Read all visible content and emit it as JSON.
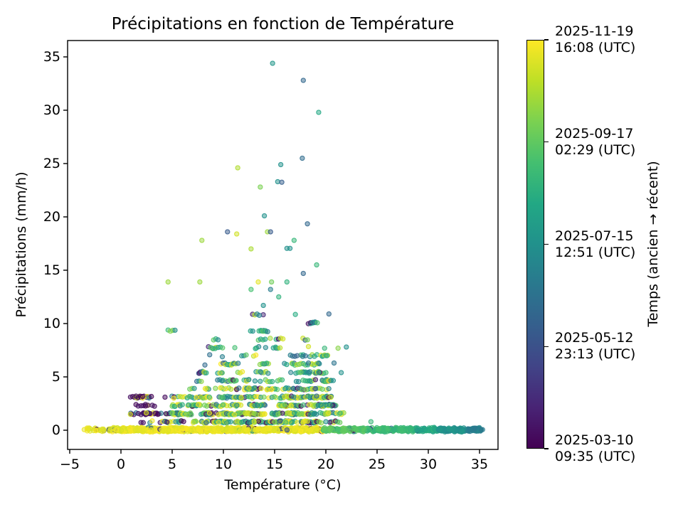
{
  "figure": {
    "background": "#ffffff",
    "spine_color": "#000000"
  },
  "chart_data": {
    "type": "scatter",
    "title": "Précipitations en fonction de Température",
    "xlabel": "Température (°C)",
    "ylabel": "Précipitations (mm/h)",
    "xlim": [
      -5.2,
      36.8
    ],
    "ylim": [
      -1.8,
      36.5
    ],
    "grid": false,
    "xticks": {
      "values": [
        -5,
        0,
        5,
        10,
        15,
        20,
        25,
        30,
        35
      ],
      "labels": [
        "−5",
        "0",
        "5",
        "10",
        "15",
        "20",
        "25",
        "30",
        "35"
      ]
    },
    "yticks": {
      "values": [
        0,
        5,
        10,
        15,
        20,
        25,
        30,
        35
      ],
      "labels": [
        "0",
        "5",
        "10",
        "15",
        "20",
        "25",
        "30",
        "35"
      ]
    },
    "colormap": "viridis",
    "viridis_stops": [
      "#440154",
      "#482475",
      "#414487",
      "#355f8d",
      "#2a788e",
      "#21918c",
      "#22a884",
      "#44bf70",
      "#7ad151",
      "#bddf26",
      "#fde725"
    ],
    "colorbar": {
      "label": "Temps (ancien → récent)",
      "ticks": [
        {
          "pos": 0.0,
          "label": "2025-03-10\n09:35 (UTC)"
        },
        {
          "pos": 0.25,
          "label": "2025-05-12\n23:13 (UTC)"
        },
        {
          "pos": 0.5,
          "label": "2025-07-15\n12:51 (UTC)"
        },
        {
          "pos": 0.75,
          "label": "2025-09-17\n02:29 (UTC)"
        },
        {
          "pos": 1.0,
          "label": "2025-11-19\n16:08 (UTC)"
        }
      ]
    },
    "points": [
      [
        14.8,
        34.4,
        0.52
      ],
      [
        17.8,
        32.8,
        0.33
      ],
      [
        19.3,
        29.8,
        0.6
      ],
      [
        15.6,
        24.9,
        0.5
      ],
      [
        17.7,
        25.5,
        0.35
      ],
      [
        11.4,
        24.6,
        0.88
      ],
      [
        15.3,
        23.3,
        0.5
      ],
      [
        15.7,
        23.25,
        0.3
      ],
      [
        13.6,
        22.8,
        0.8
      ],
      [
        14.0,
        20.1,
        0.5
      ],
      [
        18.2,
        19.35,
        0.33
      ],
      [
        11.3,
        18.4,
        0.93
      ],
      [
        10.4,
        18.6,
        0.28
      ],
      [
        14.3,
        18.6,
        0.85
      ],
      [
        14.6,
        18.6,
        0.28
      ],
      [
        7.9,
        17.8,
        0.85
      ],
      [
        16.9,
        17.8,
        0.66
      ],
      [
        12.7,
        17.0,
        0.87
      ],
      [
        16.2,
        17.05,
        0.5
      ],
      [
        16.5,
        17.05,
        0.5
      ],
      [
        19.1,
        15.5,
        0.66
      ],
      [
        17.8,
        14.7,
        0.33
      ],
      [
        4.6,
        13.9,
        0.85
      ],
      [
        7.7,
        13.9,
        0.85
      ],
      [
        13.4,
        13.9,
        0.96
      ],
      [
        14.7,
        13.9,
        0.78
      ],
      [
        16.2,
        13.9,
        0.64
      ],
      [
        12.7,
        13.2,
        0.7
      ],
      [
        14.6,
        13.2,
        0.42
      ],
      [
        15.4,
        12.5,
        0.64
      ],
      [
        13.9,
        11.7,
        0.5
      ],
      [
        20.3,
        10.9,
        0.33
      ],
      [
        22.0,
        7.8,
        0.5
      ],
      [
        18.3,
        6.3,
        0.38
      ],
      [
        19.3,
        6.3,
        0.45
      ],
      [
        20.8,
        6.3,
        0.38
      ],
      [
        21.5,
        5.4,
        0.5
      ],
      [
        19.0,
        3.9,
        0.33
      ],
      [
        18.3,
        3.2,
        0.66
      ],
      [
        19.1,
        3.2,
        0.35
      ],
      [
        19.5,
        2.4,
        0.5
      ],
      [
        20.0,
        2.4,
        0.5
      ],
      [
        20.4,
        2.4,
        0.5
      ],
      [
        21.4,
        1.6,
        0.66
      ],
      [
        24.4,
        0.8,
        0.66
      ],
      [
        20.0,
        0.8,
        0.5
      ],
      [
        4.3,
        3.1,
        0.03
      ],
      [
        4.4,
        1.55,
        0.03
      ]
    ],
    "palettes": {
      "mixLow": [
        [
          0.34,
          0.88,
          1.0
        ],
        [
          0.2,
          0.72,
          0.85
        ],
        [
          0.16,
          0.55,
          0.72
        ],
        [
          0.12,
          0.0,
          0.07
        ],
        [
          0.1,
          0.3,
          0.48
        ],
        [
          0.08,
          0.45,
          0.55
        ]
      ],
      "mixMid": [
        [
          0.26,
          0.6,
          0.75
        ],
        [
          0.22,
          0.78,
          0.95
        ],
        [
          0.2,
          0.45,
          0.6
        ],
        [
          0.18,
          0.3,
          0.45
        ],
        [
          0.08,
          0.02,
          0.12
        ],
        [
          0.06,
          0.88,
          1.0
        ]
      ],
      "purpleCluster": [
        [
          0.72,
          0.0,
          0.06
        ],
        [
          0.18,
          0.9,
          1.0
        ],
        [
          0.1,
          0.3,
          0.45
        ]
      ]
    },
    "bands": [
      {
        "y": 0.78,
        "x": [
          4.3,
          21.0
        ],
        "n": 150,
        "palette": "mixLow"
      },
      {
        "y": 0.78,
        "x": [
          1.2,
          4.2
        ],
        "n": 8,
        "palette": "purpleCluster"
      },
      {
        "y": 1.55,
        "x": [
          4.0,
          21.6
        ],
        "n": 200,
        "palette": "mixLow"
      },
      {
        "y": 1.55,
        "x": [
          0.7,
          3.3
        ],
        "n": 30,
        "palette": "purpleCluster"
      },
      {
        "y": 2.33,
        "x": [
          4.3,
          20.6
        ],
        "n": 130,
        "palette": "mixLow"
      },
      {
        "y": 2.33,
        "x": [
          1.0,
          3.2
        ],
        "n": 10,
        "palette": "purpleCluster"
      },
      {
        "y": 3.1,
        "x": [
          4.3,
          20.6
        ],
        "n": 110,
        "palette": "mixLow"
      },
      {
        "y": 3.1,
        "x": [
          0.4,
          2.6
        ],
        "n": 20,
        "palette": "purpleCluster"
      },
      {
        "y": 3.88,
        "x": [
          6.5,
          20.6
        ],
        "n": 70,
        "palette": "mixLow"
      },
      {
        "y": 4.65,
        "x": [
          7.0,
          21.0
        ],
        "n": 54,
        "palette": "mixMid"
      },
      {
        "y": 5.43,
        "x": [
          7.5,
          21.6
        ],
        "n": 46,
        "palette": "mixMid"
      },
      {
        "y": 6.2,
        "x": [
          7.5,
          21.0
        ],
        "n": 40,
        "palette": "mixMid"
      },
      {
        "y": 6.98,
        "x": [
          8.0,
          21.0
        ],
        "n": 26,
        "palette": "mixMid"
      },
      {
        "y": 7.75,
        "x": [
          8.5,
          22.1
        ],
        "n": 22,
        "palette": "mixMid"
      },
      {
        "y": 8.53,
        "x": [
          9.0,
          20.0
        ],
        "n": 15,
        "palette": "mixMid"
      },
      {
        "y": 9.3,
        "x": [
          4.2,
          20.0
        ],
        "n": 14,
        "palette": "mixMid"
      },
      {
        "y": 10.08,
        "x": [
          10.0,
          19.5
        ],
        "n": 8,
        "palette": "mixMid"
      },
      {
        "y": 10.85,
        "x": [
          11.0,
          20.3
        ],
        "n": 6,
        "palette": "mixMid"
      }
    ],
    "zero_band": {
      "y_center": 0.0,
      "y_jitter": [
        -0.18,
        0.28
      ],
      "segments": [
        {
          "x": [
            -3.7,
            -1.2
          ],
          "n": 25
        },
        {
          "x": [
            -1.2,
            19.7
          ],
          "n": 1050
        },
        {
          "x": [
            19.7,
            31.0
          ],
          "n": 380
        },
        {
          "x": [
            31.0,
            35.3
          ],
          "n": 170
        }
      ],
      "t_by_temp": [
        [
          19.7,
          0.93,
          1.0
        ],
        [
          24.0,
          0.7,
          0.78
        ],
        [
          28.5,
          0.63,
          0.72
        ],
        [
          31.0,
          0.55,
          0.65
        ],
        [
          33.5,
          0.46,
          0.55
        ],
        [
          36.0,
          0.38,
          0.48
        ]
      ],
      "speck_fraction": 0.04,
      "speck_t": [
        0.0,
        0.55
      ]
    }
  }
}
